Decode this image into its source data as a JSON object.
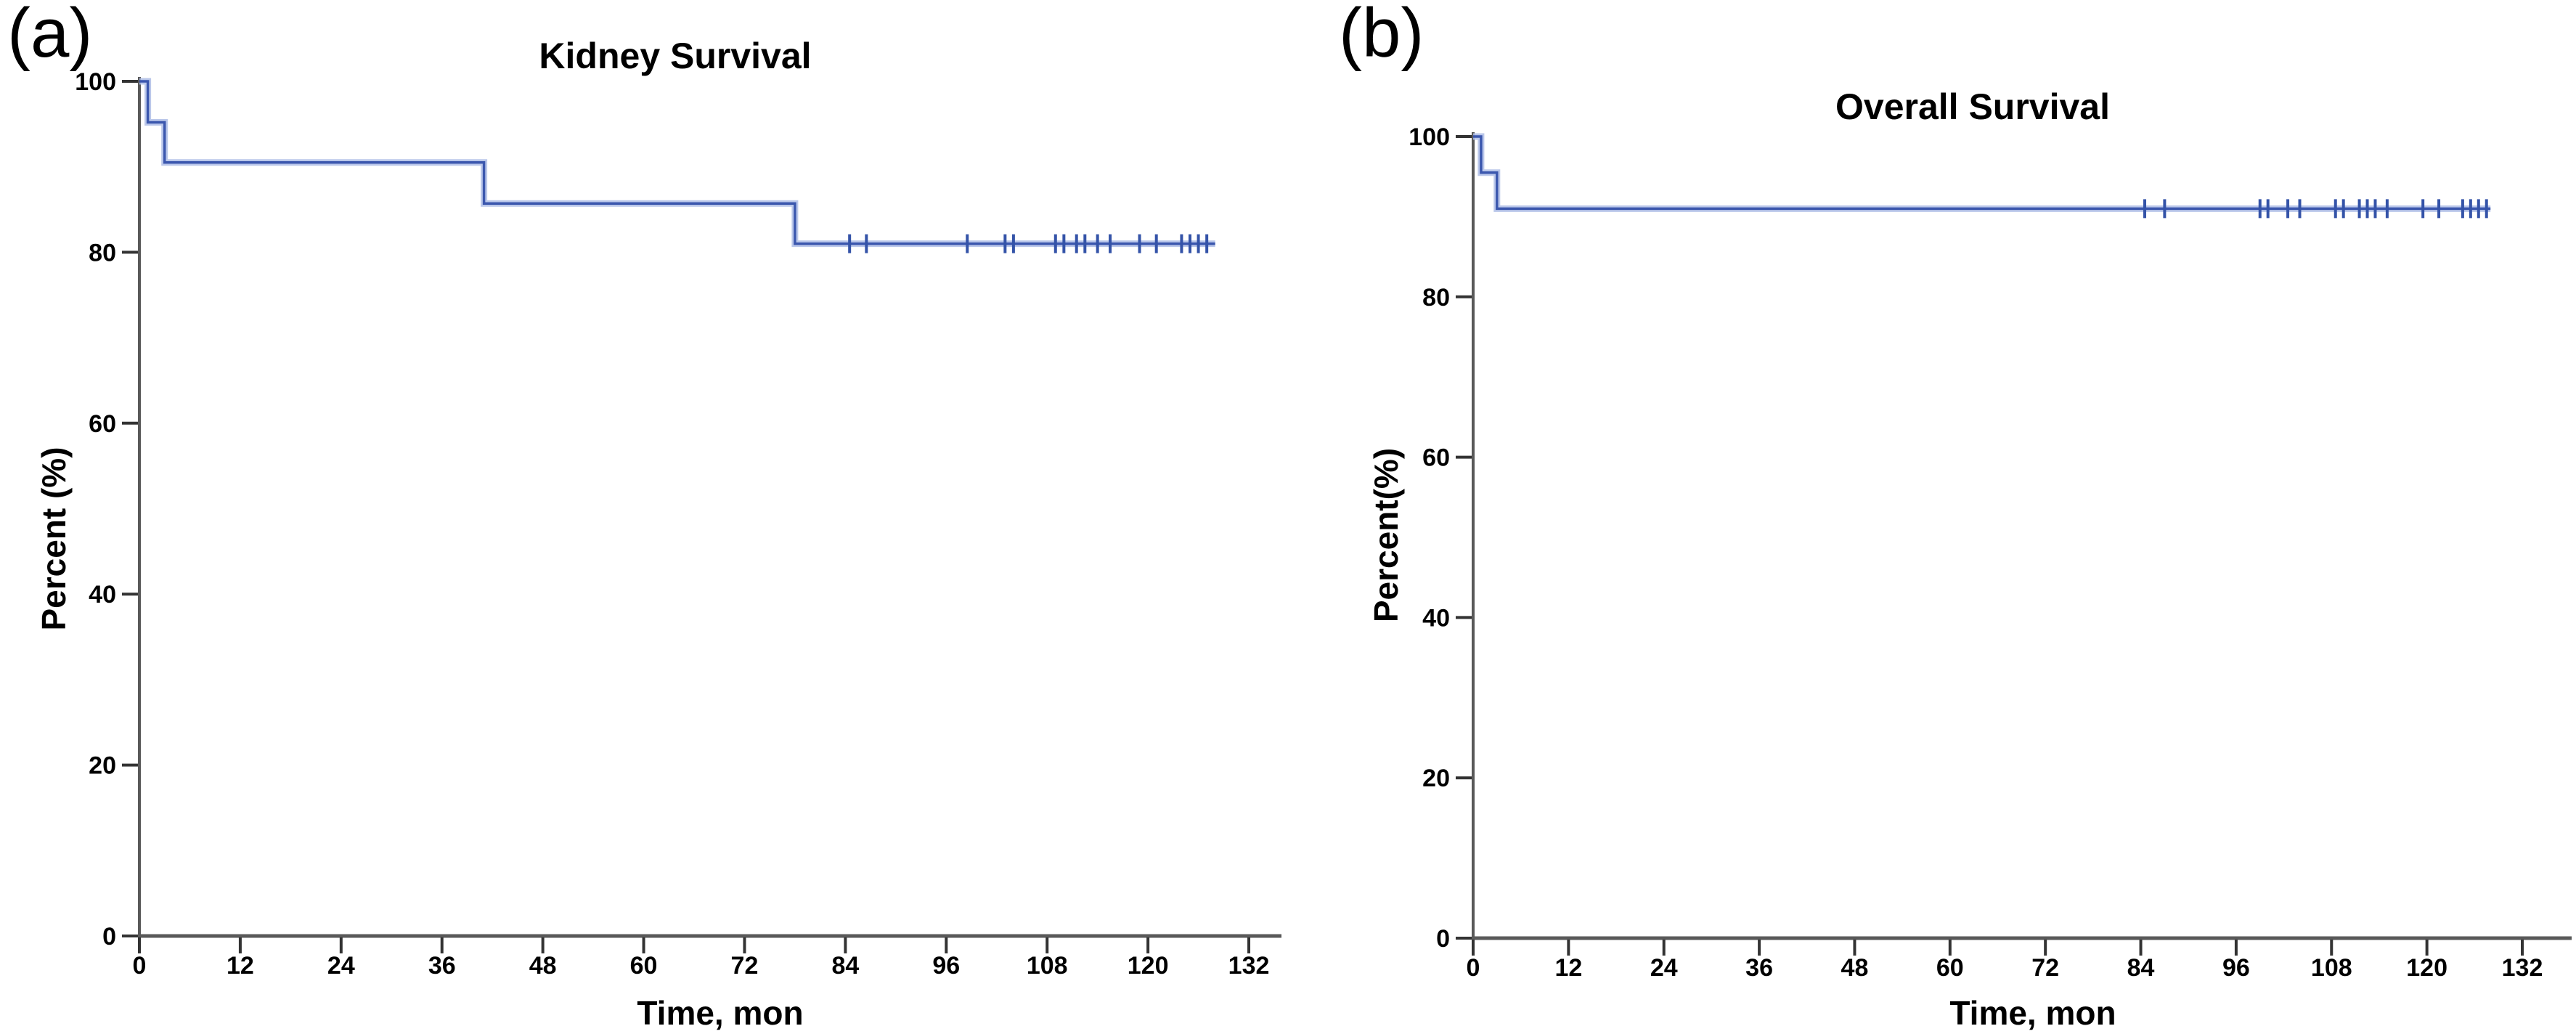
{
  "figure": {
    "background": "#ffffff",
    "description": "Two-panel Kaplan-Meier survival figure"
  },
  "chart_data": [
    {
      "type": "line",
      "subtype": "kaplan-meier-step",
      "panel_label": "(a)",
      "title": "Kidney Survival",
      "xlabel": "Time, mon",
      "ylabel": "Percent (%)",
      "x_ticks": [
        0,
        12,
        24,
        36,
        48,
        60,
        72,
        84,
        96,
        108,
        120,
        132
      ],
      "y_ticks": [
        0,
        20,
        40,
        60,
        80,
        100
      ],
      "xlim": [
        0,
        136
      ],
      "ylim": [
        0,
        100
      ],
      "grid": false,
      "legend": null,
      "series": [
        {
          "name": "Kidney survival",
          "steps": [
            {
              "t": 0,
              "s": 100
            },
            {
              "t": 1,
              "s": 95.2
            },
            {
              "t": 3,
              "s": 90.5
            },
            {
              "t": 41,
              "s": 85.7
            },
            {
              "t": 78,
              "s": 81.0
            }
          ],
          "end_time": 128,
          "censor_level": 81.0,
          "censor_times": [
            84.5,
            86.5,
            98.5,
            103,
            104,
            109,
            110,
            111.5,
            112.5,
            114,
            115.5,
            119,
            121,
            124,
            125,
            126,
            127
          ]
        }
      ],
      "colors": {
        "line": "#3b57ae",
        "line_halo": "#aebde6",
        "censor": "#3453a8",
        "axis": "#595959",
        "tick": "#333333",
        "tick_label": "#000000"
      }
    },
    {
      "type": "line",
      "subtype": "kaplan-meier-step",
      "panel_label": "(b)",
      "title": "Overall Survival",
      "xlabel": "Time, mon",
      "ylabel": "Percent(%)",
      "x_ticks": [
        0,
        12,
        24,
        36,
        48,
        60,
        72,
        84,
        96,
        108,
        120,
        132
      ],
      "y_ticks": [
        0,
        20,
        40,
        60,
        80,
        100
      ],
      "xlim": [
        0,
        138
      ],
      "ylim": [
        0,
        100
      ],
      "grid": false,
      "legend": null,
      "series": [
        {
          "name": "Overall survival",
          "steps": [
            {
              "t": 0,
              "s": 100
            },
            {
              "t": 1,
              "s": 95.5
            },
            {
              "t": 3,
              "s": 91.0
            }
          ],
          "end_time": 128,
          "censor_level": 91.0,
          "censor_times": [
            84.5,
            87,
            99,
            100,
            102.5,
            104,
            108.5,
            109.5,
            111.5,
            112.5,
            113.5,
            115,
            119.5,
            121.5,
            124.5,
            125.5,
            126.5,
            127.5
          ]
        }
      ],
      "colors": {
        "line": "#3b57ae",
        "line_halo": "#aebde6",
        "censor": "#3453a8",
        "axis": "#595959",
        "tick": "#333333",
        "tick_label": "#000000"
      }
    }
  ]
}
